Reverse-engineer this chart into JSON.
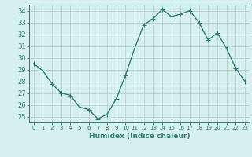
{
  "x": [
    0,
    1,
    2,
    3,
    4,
    5,
    6,
    7,
    8,
    9,
    10,
    11,
    12,
    13,
    14,
    15,
    16,
    17,
    18,
    19,
    20,
    21,
    22,
    23
  ],
  "y": [
    29.5,
    28.9,
    27.8,
    27.0,
    26.8,
    25.8,
    25.6,
    24.8,
    25.2,
    26.5,
    28.5,
    30.8,
    32.8,
    33.3,
    34.1,
    33.5,
    33.7,
    34.0,
    33.0,
    31.5,
    32.1,
    30.8,
    29.1,
    28.0
  ],
  "line_color": "#2e7d6e",
  "marker_color": "#2e7d6e",
  "bg_color": "#d6f0ee",
  "grid_color": "#b8d4cc",
  "axis_color": "#2e7d6e",
  "tick_color": "#2e7d6e",
  "xlabel": "Humidex (Indice chaleur)",
  "ylabel": "",
  "title": "",
  "xlim": [
    -0.5,
    23.5
  ],
  "ylim": [
    24.5,
    34.5
  ],
  "yticks": [
    25,
    26,
    27,
    28,
    29,
    30,
    31,
    32,
    33,
    34
  ],
  "xticks": [
    0,
    1,
    2,
    3,
    4,
    5,
    6,
    7,
    8,
    9,
    10,
    11,
    12,
    13,
    14,
    15,
    16,
    17,
    18,
    19,
    20,
    21,
    22,
    23
  ],
  "marker_size": 2.5,
  "line_width": 1.0
}
